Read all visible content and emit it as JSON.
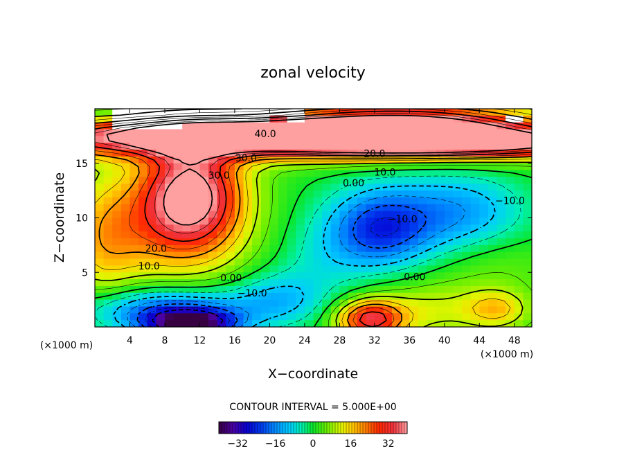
{
  "chart_data": {
    "type": "heatmap",
    "title": "zonal velocity",
    "xlabel": "X−coordinate",
    "ylabel": "Z−coordinate",
    "x_unit_left": "(×1000 m)",
    "x_unit_right": "(×1000 m)",
    "xlim": [
      0,
      50
    ],
    "ylim": [
      0,
      20
    ],
    "x_ticks": [
      4,
      8,
      12,
      16,
      20,
      24,
      28,
      32,
      36,
      40,
      44,
      48
    ],
    "y_ticks": [
      5,
      10,
      15
    ],
    "contour_interval_text": "CONTOUR INTERVAL = 5.000E+00",
    "colorbar": {
      "vmin": -40,
      "vmax": 40,
      "ticks": [
        -32,
        -16,
        0,
        16,
        32
      ]
    },
    "contour_labels": [
      {
        "text": "40.0",
        "x": 19.5,
        "y": 17.7
      },
      {
        "text": "30.0",
        "x": 17.3,
        "y": 15.5
      },
      {
        "text": "30.0",
        "x": 14.2,
        "y": 13.9
      },
      {
        "text": "20.0",
        "x": 32.0,
        "y": 15.9
      },
      {
        "text": "10.0",
        "x": 33.2,
        "y": 14.2
      },
      {
        "text": "0.00",
        "x": 29.6,
        "y": 13.2
      },
      {
        "text": "−10.0",
        "x": 35.2,
        "y": 9.9
      },
      {
        "text": "−10.0",
        "x": 47.5,
        "y": 11.6
      },
      {
        "text": "20.0",
        "x": 7.0,
        "y": 7.2
      },
      {
        "text": "10.0",
        "x": 6.2,
        "y": 5.6
      },
      {
        "text": "0.00",
        "x": 15.6,
        "y": 4.5
      },
      {
        "text": "−10.0",
        "x": 18.0,
        "y": 3.1
      },
      {
        "text": "0.00",
        "x": 36.6,
        "y": 4.6
      }
    ],
    "features": [
      {
        "kind": "jet",
        "value": 40,
        "x": 35,
        "y": 18.5
      },
      {
        "kind": "upper-layer",
        "value": 32,
        "x": 25,
        "y": 17.0
      },
      {
        "kind": "jet-core",
        "value": 36,
        "x": 11,
        "y": 12.5
      },
      {
        "kind": "surface-low",
        "value": -36,
        "x": 11,
        "y": 0.3
      },
      {
        "kind": "surface-low-wide",
        "value": -22,
        "x": 8,
        "y": 1.5
      },
      {
        "kind": "cyan-band",
        "value": -12,
        "x": 21,
        "y": 2.5
      },
      {
        "kind": "blue-eddy",
        "value": -17,
        "x": 32.5,
        "y": 8.8
      },
      {
        "kind": "cyan-tongue",
        "value": -8,
        "x": 42.5,
        "y": 10.5
      },
      {
        "kind": "surface-high",
        "value": 30,
        "x": 31.5,
        "y": 0.7
      },
      {
        "kind": "yellow-patch",
        "value": 13,
        "x": 46,
        "y": 1.6
      }
    ]
  }
}
